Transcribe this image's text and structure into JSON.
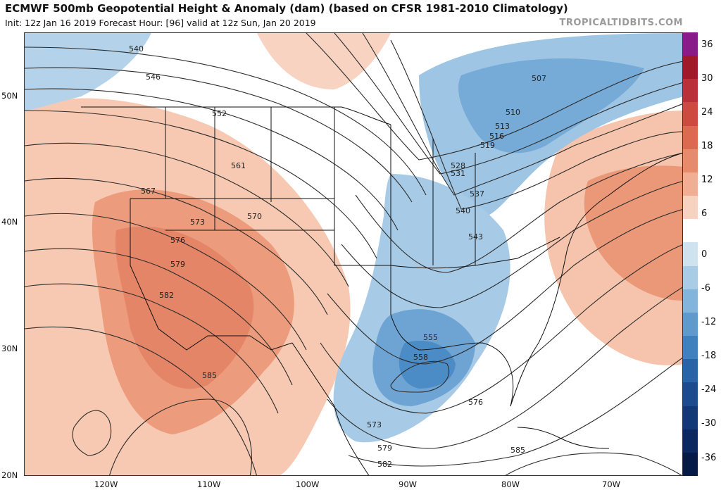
{
  "header": {
    "title": "ECMWF 500mb Geopotential Height & Anomaly (dam) (based on CFSR 1981-2010 Climatology)",
    "subtitle": "Init: 12z Jan 16 2019   Forecast Hour: [96]   valid at 12z Sun, Jan 20 2019",
    "credit": "TROPICALTIDBITS.COM"
  },
  "axes": {
    "lat_labels": [
      "50N",
      "40N",
      "30N",
      "20N"
    ],
    "lon_labels": [
      "120W",
      "110W",
      "100W",
      "90W",
      "80W",
      "70W"
    ]
  },
  "colorbar": {
    "labels": [
      "36",
      "30",
      "24",
      "18",
      "12",
      "6",
      "0",
      "-6",
      "-12",
      "-18",
      "-24",
      "-30",
      "-36"
    ],
    "colors": [
      "#8a1a8a",
      "#9e1a2a",
      "#b8303a",
      "#cc4a40",
      "#dc6a50",
      "#e88a6c",
      "#f2ae94",
      "#f8d2c0",
      "#ffffff",
      "#cfe2f0",
      "#a8cce6",
      "#82b4dc",
      "#5e9acd",
      "#3f80bf",
      "#2a64a8",
      "#1c4c90",
      "#123878",
      "#0b2860",
      "#061a48"
    ]
  },
  "contour_labels": [
    "540",
    "546",
    "552",
    "561",
    "567",
    "570",
    "573",
    "576",
    "579",
    "582",
    "585",
    "507",
    "510",
    "513",
    "516",
    "519",
    "528",
    "531",
    "537",
    "540",
    "543",
    "555",
    "558",
    "576",
    "573",
    "579",
    "582",
    "585"
  ]
}
